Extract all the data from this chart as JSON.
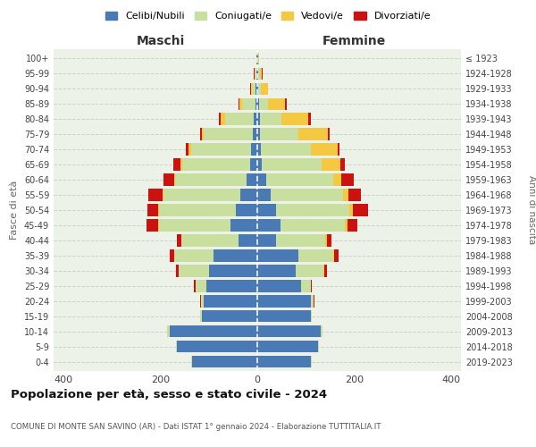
{
  "age_groups": [
    "0-4",
    "5-9",
    "10-14",
    "15-19",
    "20-24",
    "25-29",
    "30-34",
    "35-39",
    "40-44",
    "45-49",
    "50-54",
    "55-59",
    "60-64",
    "65-69",
    "70-74",
    "75-79",
    "80-84",
    "85-89",
    "90-94",
    "95-99",
    "100+"
  ],
  "birth_years": [
    "2019-2023",
    "2014-2018",
    "2009-2013",
    "2004-2008",
    "1999-2003",
    "1994-1998",
    "1989-1993",
    "1984-1988",
    "1979-1983",
    "1974-1978",
    "1969-1973",
    "1964-1968",
    "1959-1963",
    "1954-1958",
    "1949-1953",
    "1944-1948",
    "1939-1943",
    "1934-1938",
    "1929-1933",
    "1924-1928",
    "≤ 1923"
  ],
  "maschi": {
    "celibi": [
      135,
      165,
      180,
      115,
      110,
      105,
      100,
      90,
      38,
      55,
      45,
      35,
      22,
      15,
      12,
      10,
      8,
      4,
      3,
      2,
      1
    ],
    "coniugati": [
      2,
      3,
      6,
      2,
      6,
      22,
      62,
      82,
      118,
      148,
      158,
      158,
      148,
      140,
      125,
      100,
      58,
      28,
      8,
      3,
      1
    ],
    "vedovi": [
      0,
      0,
      0,
      0,
      0,
      0,
      0,
      0,
      0,
      1,
      1,
      2,
      2,
      3,
      5,
      5,
      10,
      5,
      2,
      1,
      0
    ],
    "divorziati": [
      0,
      0,
      0,
      1,
      2,
      3,
      5,
      8,
      10,
      25,
      22,
      30,
      22,
      15,
      5,
      3,
      3,
      1,
      1,
      1,
      0
    ]
  },
  "femmine": {
    "nubili": [
      110,
      125,
      130,
      110,
      110,
      90,
      80,
      85,
      38,
      48,
      38,
      28,
      18,
      10,
      8,
      5,
      5,
      3,
      2,
      2,
      1
    ],
    "coniugate": [
      2,
      2,
      4,
      2,
      6,
      20,
      57,
      72,
      102,
      132,
      152,
      148,
      138,
      122,
      102,
      80,
      45,
      20,
      5,
      3,
      1
    ],
    "vedove": [
      0,
      0,
      0,
      0,
      0,
      0,
      1,
      2,
      3,
      6,
      8,
      12,
      18,
      40,
      55,
      60,
      55,
      35,
      15,
      5,
      1
    ],
    "divorziate": [
      0,
      0,
      0,
      1,
      2,
      3,
      5,
      8,
      10,
      20,
      30,
      25,
      25,
      8,
      5,
      5,
      5,
      2,
      1,
      1,
      0
    ]
  },
  "colors": {
    "celibi_nubili": "#4a7ab5",
    "coniugati": "#c8dfa0",
    "vedovi": "#f5c842",
    "divorziati": "#cc1111"
  },
  "xlim": 420,
  "title": "Popolazione per età, sesso e stato civile - 2024",
  "subtitle": "COMUNE DI MONTE SAN SAVINO (AR) - Dati ISTAT 1° gennaio 2024 - Elaborazione TUTTITALIA.IT",
  "ylabel": "Fasce di età",
  "ylabel_right": "Anni di nascita",
  "xlabel_maschi": "Maschi",
  "xlabel_femmine": "Femmine",
  "legend_labels": [
    "Celibi/Nubili",
    "Coniugati/e",
    "Vedovi/e",
    "Divorziati/e"
  ],
  "bg_color": "#edf2e8"
}
